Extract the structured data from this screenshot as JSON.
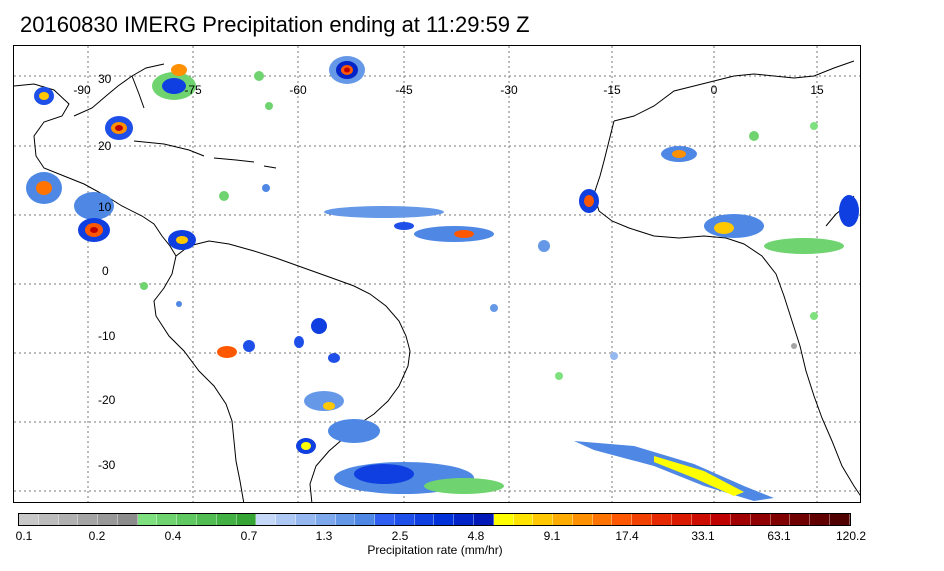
{
  "title": "20160830 IMERG Precipitation ending at 11:29:59 Z",
  "map": {
    "longitude_labels": [
      "-90",
      "-75",
      "-60",
      "-45",
      "-30",
      "-15",
      "0",
      "15"
    ],
    "latitude_labels": [
      "30",
      "20",
      "10",
      "0",
      "-10",
      "-20",
      "-30"
    ],
    "land_color": "#000000",
    "grid_color": "#777777"
  },
  "colorbar": {
    "title": "Precipitation rate (mm/hr)",
    "tick_labels": [
      "0.1",
      "0.2",
      "0.4",
      "0.7",
      "1.3",
      "2.5",
      "4.8",
      "9.1",
      "17.4",
      "33.1",
      "63.1",
      "120.2"
    ],
    "colors": [
      "#c8c8c8",
      "#bcbcbc",
      "#b0b0b0",
      "#a4a4a4",
      "#989898",
      "#8c8c8c",
      "#7ee07e",
      "#6fd46f",
      "#60c860",
      "#51bc51",
      "#42b042",
      "#35a435",
      "#c6d8f8",
      "#aec8f4",
      "#96b8f0",
      "#7ea8ec",
      "#6698e8",
      "#4e88e4",
      "#2f5ff0",
      "#1e4fe8",
      "#0f3fe0",
      "#0030d8",
      "#0024c8",
      "#0018b8",
      "#ffff00",
      "#ffe400",
      "#ffc800",
      "#ffac00",
      "#ff9000",
      "#ff7400",
      "#ff5800",
      "#f24000",
      "#e62800",
      "#d91a00",
      "#cc0c00",
      "#bf0000",
      "#a00000",
      "#900000",
      "#800000",
      "#700000",
      "#600000",
      "#500000"
    ]
  }
}
